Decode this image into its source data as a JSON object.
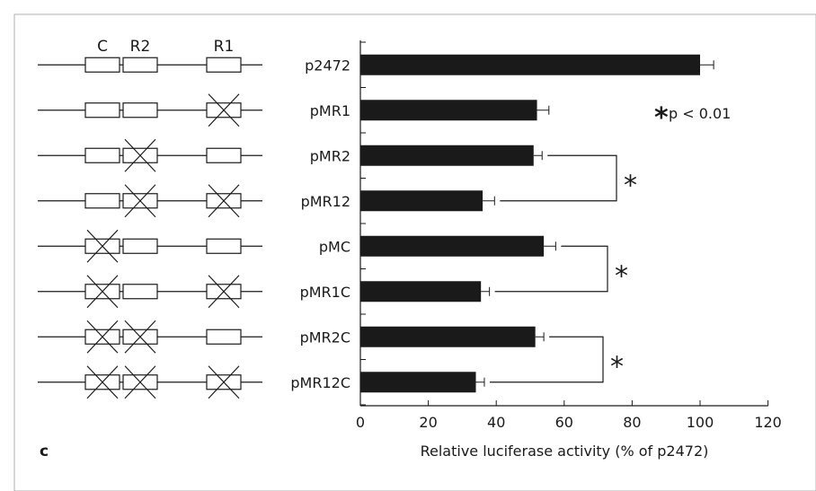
{
  "panel_label": "c",
  "constructs": {
    "element_labels": [
      "C",
      "R2",
      "R1"
    ],
    "rows": [
      {
        "name": "p2472",
        "deleted": {
          "C": false,
          "R2": false,
          "R1": false
        }
      },
      {
        "name": "pMR1",
        "deleted": {
          "C": false,
          "R2": false,
          "R1": true
        }
      },
      {
        "name": "pMR2",
        "deleted": {
          "C": false,
          "R2": true,
          "R1": false
        }
      },
      {
        "name": "pMR12",
        "deleted": {
          "C": false,
          "R2": true,
          "R1": true
        }
      },
      {
        "name": "pMC",
        "deleted": {
          "C": true,
          "R2": false,
          "R1": false
        }
      },
      {
        "name": "pMR1C",
        "deleted": {
          "C": true,
          "R2": false,
          "R1": true
        }
      },
      {
        "name": "pMR2C",
        "deleted": {
          "C": true,
          "R2": true,
          "R1": false
        }
      },
      {
        "name": "pMR12C",
        "deleted": {
          "C": true,
          "R2": true,
          "R1": true
        }
      }
    ]
  },
  "chart_data": {
    "type": "bar",
    "orientation": "horizontal",
    "categories": [
      "p2472",
      "pMR1",
      "pMR2",
      "pMR12",
      "pMC",
      "pMR1C",
      "pMR2C",
      "pMR12C"
    ],
    "values": [
      100,
      52,
      51,
      36,
      54,
      35.5,
      51.5,
      34
    ],
    "errors": [
      4,
      3.5,
      2.5,
      3.5,
      3.5,
      2.5,
      2.5,
      2.5
    ],
    "xlabel": "Relative luciferase activity (% of p2472)",
    "xlim": [
      0,
      120
    ],
    "xticks": [
      0,
      20,
      40,
      60,
      80,
      100,
      120
    ],
    "grid": false,
    "bar_color": "#1a1a1a",
    "significance_legend": {
      "symbol": "*",
      "text": "p < 0.01"
    },
    "significance_brackets": [
      {
        "between": [
          "pMR2",
          "pMR12"
        ],
        "symbol": "*"
      },
      {
        "between": [
          "pMC",
          "pMR1C"
        ],
        "symbol": "*"
      },
      {
        "between": [
          "pMR2C",
          "pMR12C"
        ],
        "symbol": "*"
      }
    ]
  }
}
